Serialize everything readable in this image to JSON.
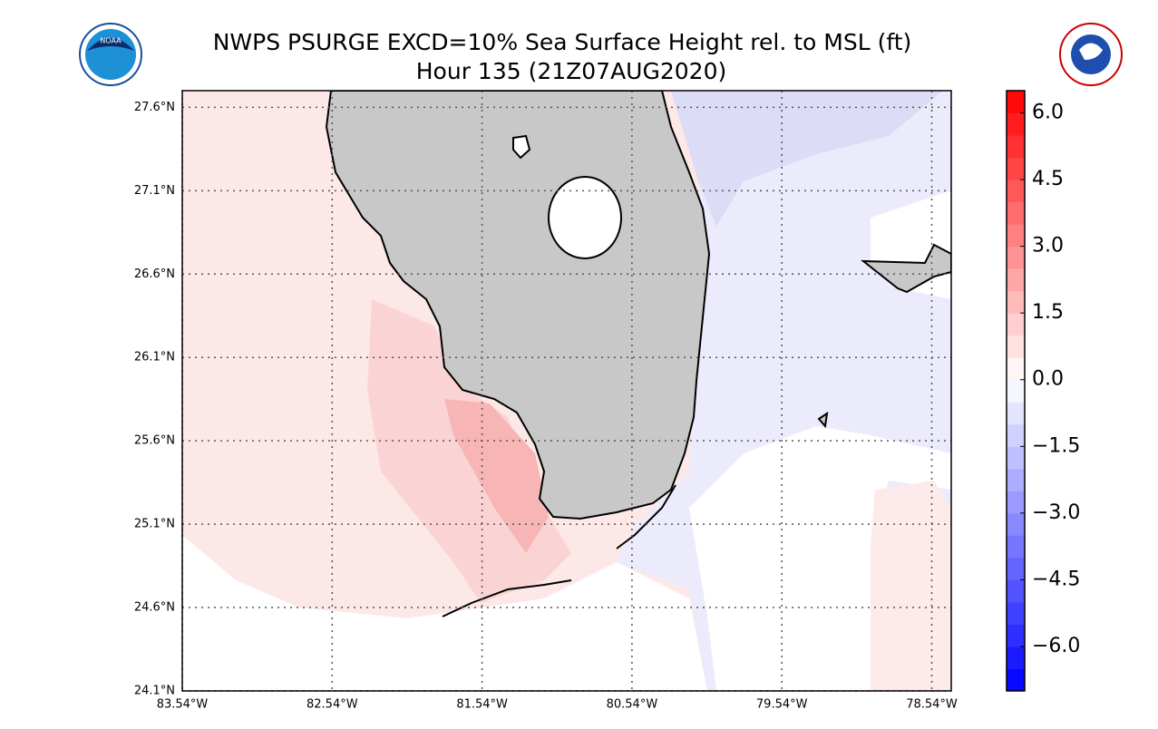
{
  "header": {
    "title": "NWPS PSURGE EXCD=10% Sea Surface Height rel. to MSL (ft)",
    "subtitle": "Hour 135 (21Z07AUG2020)"
  },
  "map": {
    "lon_range": [
      -83.54,
      -78.41
    ],
    "lat_range": [
      24.1,
      27.7
    ],
    "grid": true,
    "lon_ticks": [
      {
        "value": -83.54,
        "label": "83.54°W"
      },
      {
        "value": -82.54,
        "label": "82.54°W"
      },
      {
        "value": -81.54,
        "label": "81.54°W"
      },
      {
        "value": -80.54,
        "label": "80.54°W"
      },
      {
        "value": -79.54,
        "label": "79.54°W"
      },
      {
        "value": -78.54,
        "label": "78.54°W"
      }
    ],
    "lat_ticks": [
      {
        "value": 27.6,
        "label": "27.6°N"
      },
      {
        "value": 27.1,
        "label": "27.1°N"
      },
      {
        "value": 26.6,
        "label": "26.6°N"
      },
      {
        "value": 26.1,
        "label": "26.1°N"
      },
      {
        "value": 25.6,
        "label": "25.6°N"
      },
      {
        "value": 25.1,
        "label": "25.1°N"
      },
      {
        "value": 24.6,
        "label": "24.6°N"
      },
      {
        "value": 24.1,
        "label": "24.1°N"
      }
    ]
  },
  "colorbar": {
    "range": [
      -7,
      6.5
    ],
    "step": 0.5,
    "colors": {
      "low": "#0000ff",
      "mid": "#ffffff",
      "high": "#ff0000"
    },
    "ticks": [
      {
        "value": 6,
        "label": "6.0"
      },
      {
        "value": 4.5,
        "label": "4.5"
      },
      {
        "value": 3,
        "label": "3.0"
      },
      {
        "value": 1.5,
        "label": "1.5"
      },
      {
        "value": 0,
        "label": "0.0"
      },
      {
        "value": -1.5,
        "label": "−1.5"
      },
      {
        "value": -3,
        "label": "−3.0"
      },
      {
        "value": -4.5,
        "label": "−4.5"
      },
      {
        "value": -6,
        "label": "−6.0"
      }
    ]
  }
}
